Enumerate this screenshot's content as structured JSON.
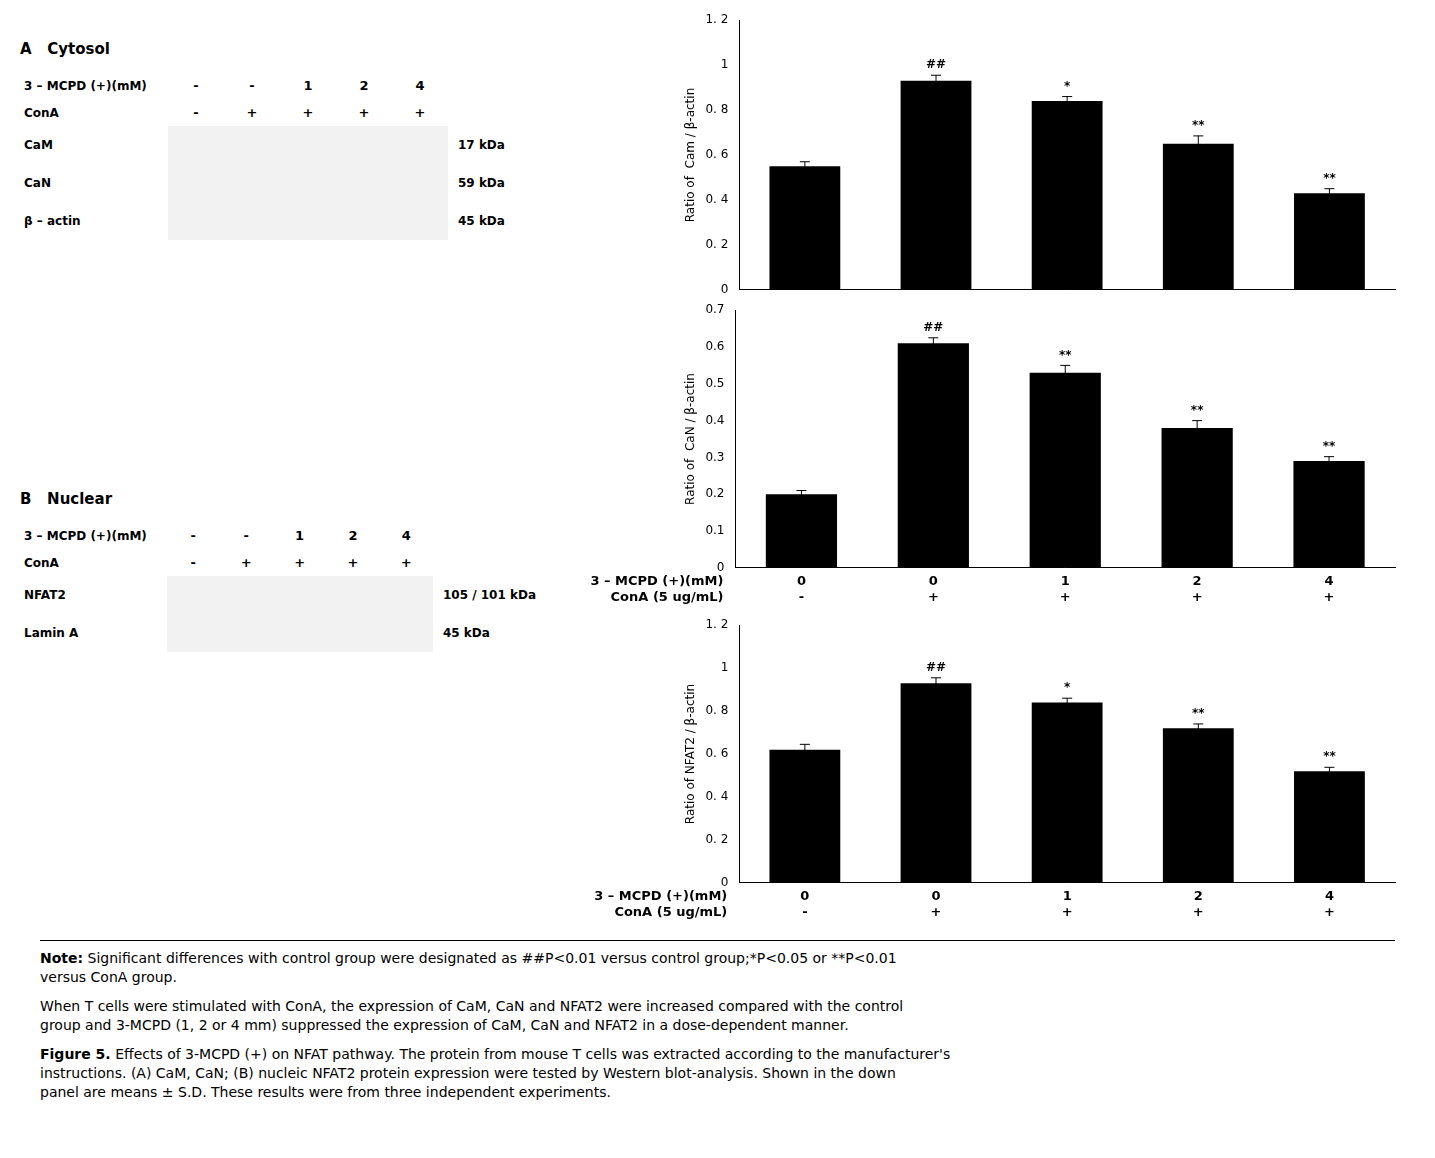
{
  "chart_data": [
    {
      "type": "bar",
      "categories": [
        null,
        null,
        null,
        null,
        null
      ],
      "values": [
        0.55,
        0.93,
        0.84,
        0.65,
        0.43
      ],
      "errors": [
        0.02,
        0.025,
        0.02,
        0.035,
        0.02
      ],
      "annotations": [
        null,
        "##",
        "*",
        "**",
        "**"
      ],
      "ylabel": "Ratio of  Cam / β-actin",
      "ylim": [
        0,
        1.2
      ],
      "yticks": [
        0,
        {
          "value": 0.2,
          "label": "0. 2"
        },
        {
          "value": 0.4,
          "label": "0. 4"
        },
        {
          "value": 0.6,
          "label": "0. 6"
        },
        {
          "value": 0.8,
          "label": "0. 8"
        },
        1,
        {
          "value": 1.2,
          "label": "1. 2"
        }
      ],
      "color": "#000000",
      "grid": false,
      "tick_labels": "y"
    },
    {
      "type": "bar",
      "categories": [
        [
          "0",
          "-"
        ],
        [
          "0",
          "+"
        ],
        [
          "1",
          "+"
        ],
        [
          "2",
          "+"
        ],
        [
          "4",
          "+"
        ]
      ],
      "xlabel": [
        "3 – MCPD (+)(mM)",
        "ConA (5 ug/mL)"
      ],
      "values": [
        0.2,
        0.61,
        0.53,
        0.38,
        0.29
      ],
      "errors": [
        0.01,
        0.015,
        0.02,
        0.02,
        0.012
      ],
      "annotations": [
        null,
        "##",
        "**",
        "**",
        "**"
      ],
      "ylabel": "Ratio of  CaN / β-actin",
      "ylim": [
        0,
        0.7
      ],
      "yticks": [
        0,
        0.1,
        0.2,
        0.3,
        0.4,
        0.5,
        0.6,
        0.7
      ],
      "color": "#000000",
      "grid": false
    },
    {
      "type": "bar",
      "categories": [
        [
          "0",
          "-"
        ],
        [
          "0",
          "+"
        ],
        [
          "1",
          "+"
        ],
        [
          "2",
          "+"
        ],
        [
          "4",
          "+"
        ]
      ],
      "xlabel": [
        "3 – MCPD (+)(mM)",
        "ConA (5 ug/mL)"
      ],
      "values": [
        0.62,
        0.93,
        0.84,
        0.72,
        0.52
      ],
      "errors": [
        0.025,
        0.025,
        0.02,
        0.02,
        0.018
      ],
      "annotations": [
        null,
        "##",
        "*",
        "**",
        "**"
      ],
      "ylabel": "Ratio of NFAT2 / β-actin",
      "ylim": [
        0,
        1.2
      ],
      "yticks": [
        0,
        {
          "value": 0.2,
          "label": "0. 2"
        },
        {
          "value": 0.4,
          "label": "0. 4"
        },
        {
          "value": 0.6,
          "label": "0. 6"
        },
        {
          "value": 0.8,
          "label": "0. 8"
        },
        1,
        {
          "value": 1.2,
          "label": "1. 2"
        }
      ],
      "color": "#000000",
      "grid": false
    }
  ],
  "blots": [
    {
      "label": "A   Cytosol",
      "rows": [
        {
          "label": "3 – MCPD (+)(mM)",
          "values": [
            "-",
            "-",
            "1",
            "2",
            "4"
          ]
        },
        {
          "label": "ConA",
          "values": [
            "-",
            "+",
            "+",
            "+",
            "+"
          ]
        }
      ],
      "bands": [
        {
          "label": "CaM",
          "size": "17 kDa"
        },
        {
          "label": "CaN",
          "size": "59 kDa"
        },
        {
          "label": "β – actin",
          "size": "45 kDa"
        }
      ]
    },
    {
      "label": "B   Nuclear",
      "rows": [
        {
          "label": "3 – MCPD (+)(mM)",
          "values": [
            "-",
            "-",
            "1",
            "2",
            "4"
          ]
        },
        {
          "label": "ConA",
          "values": [
            "-",
            "+",
            "+",
            "+",
            "+"
          ]
        }
      ],
      "bands": [
        {
          "label": "NFAT2",
          "size": "105 / 101 kDa"
        },
        {
          "label": "Lamin A",
          "size": "45 kDa"
        }
      ]
    }
  ],
  "notes": [
    {
      "bold": "Note:",
      "text": " Significant differences with control group were designated as ##P<0.01 versus control group;*P<0.05 or **P<0.01\nversus ConA group."
    },
    {
      "text": "When T cells were stimulated with ConA, the expression of CaM, CaN and NFAT2 were increased compared with the control\ngroup and 3-MCPD (1, 2 or 4 mm) suppressed the expression of CaM, CaN and NFAT2 in a dose-dependent manner."
    },
    {
      "bold": "Figure 5.",
      "text": " Effects of 3-MCPD (+) on NFAT pathway. The protein from mouse T cells was extracted according to the manufacturer's\ninstructions. (A) CaM, CaN; (B) nucleic NFAT2 protein expression were tested by Western blot-analysis. Shown in the down\npanel are means ± S.D. These results were from three independent experiments."
    }
  ]
}
